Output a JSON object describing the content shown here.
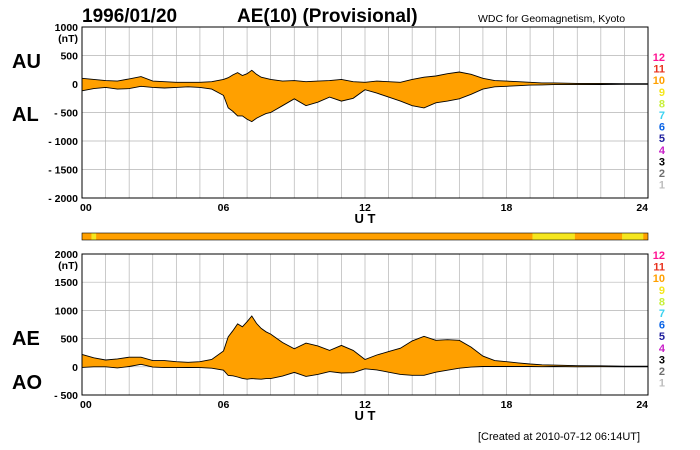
{
  "header": {
    "date": "1996/01/20",
    "title": "AE(10) (Provisional)",
    "source": "WDC for Geomagnetism, Kyoto"
  },
  "side_labels": {
    "au": "AU",
    "al": "AL",
    "ae": "AE",
    "ao": "AO"
  },
  "footer": {
    "created": "[Created at 2010-07-12 06:14UT]"
  },
  "legend": {
    "items": [
      {
        "label": "12",
        "color": "#ff1493"
      },
      {
        "label": "11",
        "color": "#e8321e"
      },
      {
        "label": "10",
        "color": "#ffa000"
      },
      {
        "label": "9",
        "color": "#f5e61e"
      },
      {
        "label": "8",
        "color": "#c8f03c"
      },
      {
        "label": "7",
        "color": "#3cd2f0"
      },
      {
        "label": "6",
        "color": "#0a64e6"
      },
      {
        "label": "5",
        "color": "#1e1e9c"
      },
      {
        "label": "4",
        "color": "#c81ec8"
      },
      {
        "label": "3",
        "color": "#000000"
      },
      {
        "label": "2",
        "color": "#6e6e6e"
      },
      {
        "label": "1",
        "color": "#bebebe"
      }
    ]
  },
  "station_bar": {
    "color": "#ffa000",
    "segments": [
      {
        "start": 0.4,
        "end": 0.6,
        "color": "#f5e61e"
      },
      {
        "start": 19.1,
        "end": 20.9,
        "color": "#f5e61e"
      },
      {
        "start": 22.9,
        "end": 23.8,
        "color": "#f5e61e"
      }
    ]
  },
  "chart_data": [
    {
      "type": "area",
      "panel": "AU/AL",
      "xlabel": "U T",
      "ylabel_unit": "(nT)",
      "xlim": [
        0,
        24
      ],
      "ylim": [
        -2000,
        1000
      ],
      "xticks": [
        "00",
        "06",
        "12",
        "18",
        "24"
      ],
      "yticks": [
        "1000",
        "500",
        "0",
        "- 500",
        "- 1000",
        "- 1500",
        "- 2000"
      ],
      "fill_color": "#ffa000",
      "series": [
        {
          "name": "AU",
          "x": [
            0,
            0.5,
            1,
            1.5,
            2,
            2.5,
            3,
            3.5,
            4,
            4.5,
            5,
            5.5,
            6,
            6.2,
            6.4,
            6.6,
            6.8,
            7,
            7.2,
            7.4,
            7.6,
            7.8,
            8,
            8.5,
            9,
            9.5,
            10,
            10.5,
            11,
            11.5,
            12,
            12.5,
            13,
            13.5,
            14,
            14.5,
            15,
            15.5,
            16,
            16.5,
            17,
            17.5,
            18,
            18.5,
            19,
            19.5,
            20,
            21,
            22,
            23,
            24
          ],
          "values": [
            100,
            80,
            60,
            50,
            90,
            130,
            50,
            40,
            30,
            30,
            30,
            40,
            80,
            110,
            160,
            200,
            150,
            180,
            240,
            170,
            120,
            100,
            80,
            50,
            60,
            40,
            50,
            60,
            80,
            40,
            30,
            50,
            40,
            30,
            80,
            120,
            140,
            180,
            210,
            170,
            100,
            60,
            50,
            40,
            30,
            20,
            20,
            10,
            10,
            5,
            5
          ]
        },
        {
          "name": "AL",
          "x": [
            0,
            0.5,
            1,
            1.5,
            2,
            2.5,
            3,
            3.5,
            4,
            4.5,
            5,
            5.5,
            6,
            6.2,
            6.4,
            6.6,
            6.8,
            7,
            7.2,
            7.4,
            7.6,
            7.8,
            8,
            8.5,
            9,
            9.5,
            10,
            10.5,
            11,
            11.5,
            12,
            12.5,
            13,
            13.5,
            14,
            14.5,
            15,
            15.5,
            16,
            16.5,
            17,
            17.5,
            18,
            18.5,
            19,
            19.5,
            20,
            21,
            22,
            23,
            24
          ],
          "values": [
            -120,
            -80,
            -60,
            -90,
            -80,
            -40,
            -60,
            -70,
            -60,
            -50,
            -60,
            -90,
            -200,
            -420,
            -480,
            -560,
            -560,
            -620,
            -660,
            -600,
            -560,
            -520,
            -500,
            -380,
            -260,
            -380,
            -320,
            -230,
            -300,
            -250,
            -100,
            -160,
            -230,
            -300,
            -380,
            -420,
            -330,
            -300,
            -260,
            -180,
            -90,
            -50,
            -40,
            -30,
            -20,
            -15,
            -10,
            -10,
            -8,
            -5,
            -5
          ]
        }
      ]
    },
    {
      "type": "area",
      "panel": "AE/AO",
      "xlabel": "U T",
      "ylabel_unit": "(nT)",
      "xlim": [
        0,
        24
      ],
      "ylim": [
        -500,
        2000
      ],
      "xticks": [
        "00",
        "06",
        "12",
        "18",
        "24"
      ],
      "yticks": [
        "2000",
        "1500",
        "1000",
        "500",
        "0",
        "- 500"
      ],
      "fill_color": "#ffa000",
      "series": [
        {
          "name": "AE",
          "x": [
            0,
            0.5,
            1,
            1.5,
            2,
            2.5,
            3,
            3.5,
            4,
            4.5,
            5,
            5.5,
            6,
            6.2,
            6.4,
            6.6,
            6.8,
            7,
            7.2,
            7.4,
            7.6,
            7.8,
            8,
            8.5,
            9,
            9.5,
            10,
            10.5,
            11,
            11.5,
            12,
            12.5,
            13,
            13.5,
            14,
            14.5,
            15,
            15.5,
            16,
            16.5,
            17,
            17.5,
            18,
            18.5,
            19,
            19.5,
            20,
            21,
            22,
            23,
            24
          ],
          "values": [
            220,
            160,
            120,
            140,
            170,
            170,
            110,
            110,
            90,
            80,
            90,
            130,
            280,
            530,
            640,
            760,
            710,
            800,
            900,
            770,
            680,
            620,
            580,
            430,
            320,
            420,
            370,
            290,
            380,
            290,
            130,
            210,
            270,
            330,
            460,
            540,
            470,
            480,
            470,
            350,
            190,
            110,
            90,
            70,
            50,
            35,
            30,
            20,
            18,
            10,
            10
          ]
        },
        {
          "name": "AO",
          "x": [
            0,
            0.5,
            1,
            1.5,
            2,
            2.5,
            3,
            3.5,
            4,
            4.5,
            5,
            5.5,
            6,
            6.2,
            6.4,
            6.6,
            6.8,
            7,
            7.2,
            7.4,
            7.6,
            7.8,
            8,
            8.5,
            9,
            9.5,
            10,
            10.5,
            11,
            11.5,
            12,
            12.5,
            13,
            13.5,
            14,
            14.5,
            15,
            15.5,
            16,
            16.5,
            17,
            17.5,
            18,
            18.5,
            19,
            19.5,
            20,
            21,
            22,
            23,
            24
          ],
          "values": [
            -10,
            0,
            0,
            -20,
            5,
            45,
            -5,
            -15,
            -15,
            -10,
            -15,
            -25,
            -60,
            -155,
            -160,
            -180,
            -205,
            -220,
            -210,
            -215,
            -220,
            -210,
            -210,
            -165,
            -100,
            -170,
            -135,
            -85,
            -110,
            -105,
            -35,
            -55,
            -95,
            -135,
            -150,
            -150,
            -95,
            -60,
            -25,
            -5,
            5,
            5,
            5,
            5,
            5,
            2,
            5,
            0,
            1,
            0,
            0
          ]
        }
      ]
    }
  ]
}
